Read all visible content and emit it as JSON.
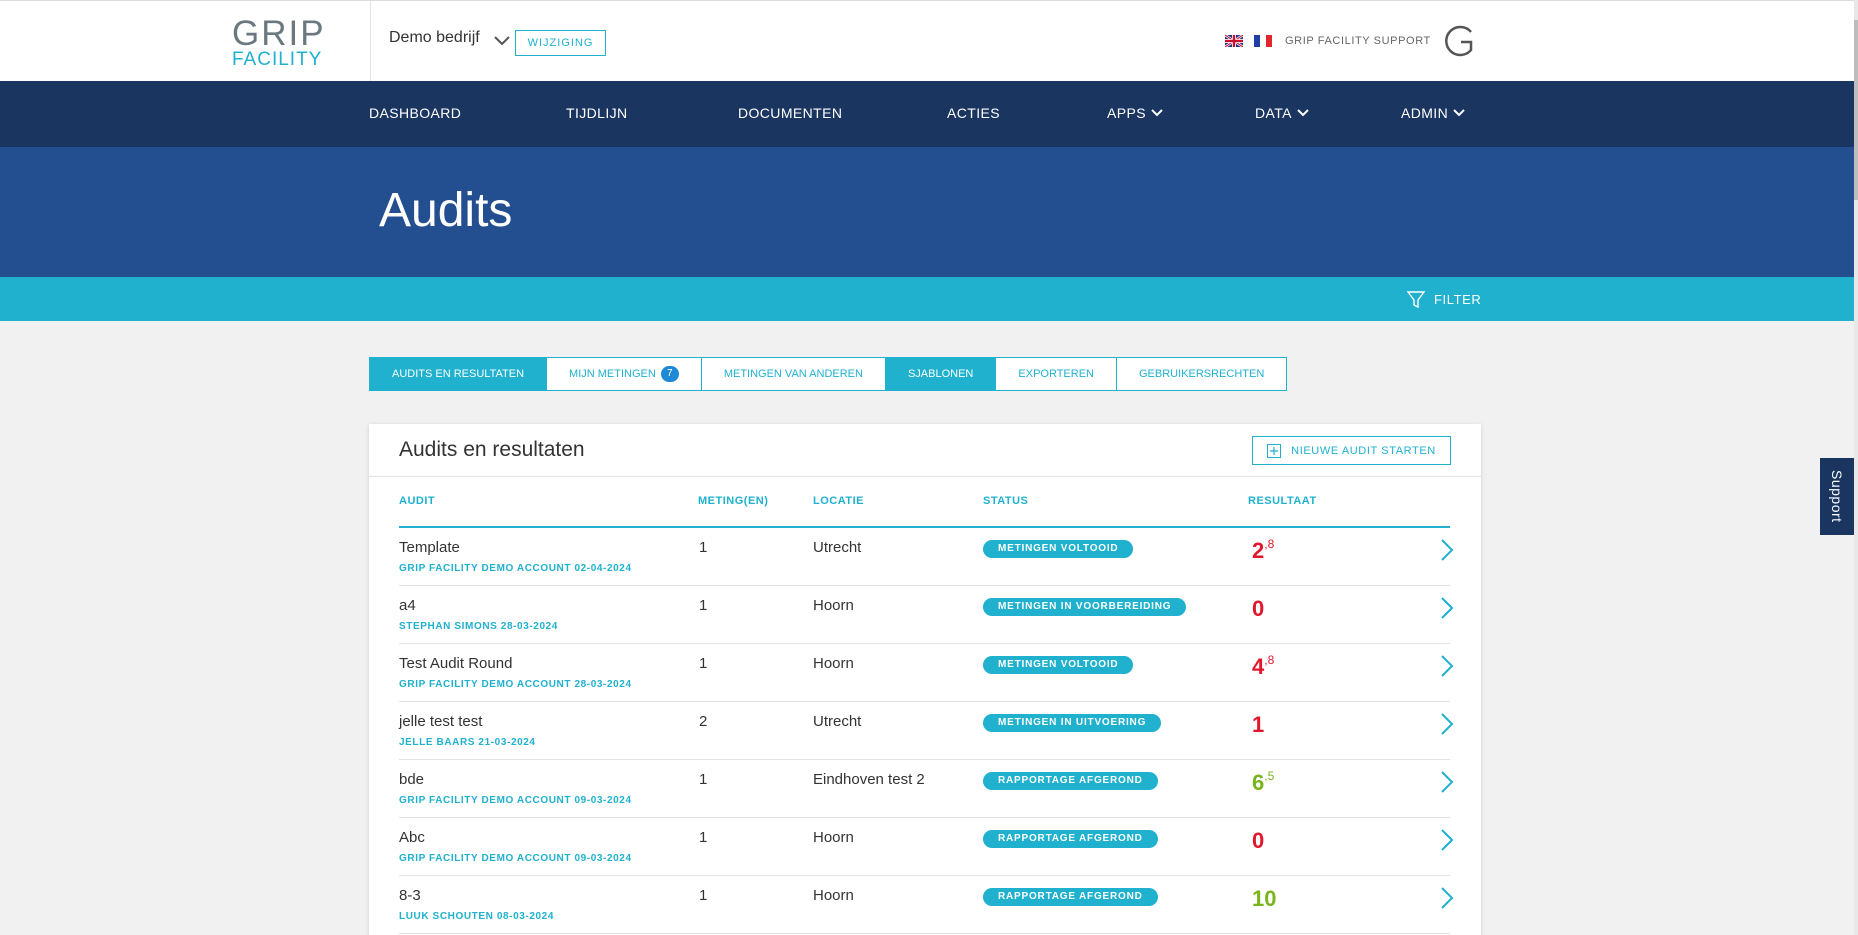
{
  "header": {
    "logo_top": "GRIP",
    "logo_bottom": "FACILITY",
    "company": "Demo bedrijf",
    "change_label": "WIJZIGING",
    "support_label": "GRIP FACILITY SUPPORT"
  },
  "nav": {
    "items": [
      {
        "label": "DASHBOARD",
        "dropdown": false
      },
      {
        "label": "TIJDLIJN",
        "dropdown": false
      },
      {
        "label": "DOCUMENTEN",
        "dropdown": false
      },
      {
        "label": "ACTIES",
        "dropdown": false
      },
      {
        "label": "APPS",
        "dropdown": true
      },
      {
        "label": "DATA",
        "dropdown": true
      },
      {
        "label": "ADMIN",
        "dropdown": true
      }
    ]
  },
  "page": {
    "title": "Audits",
    "filter_label": "FILTER"
  },
  "tabs": [
    {
      "label": "AUDITS EN RESULTATEN",
      "active": true
    },
    {
      "label": "MIJN METINGEN",
      "count": "7",
      "active": false
    },
    {
      "label": "METINGEN VAN ANDEREN",
      "active": false
    },
    {
      "label": "SJABLONEN",
      "active": true
    },
    {
      "label": "EXPORTEREN",
      "active": false
    },
    {
      "label": "GEBRUIKERSRECHTEN",
      "active": false
    }
  ],
  "card": {
    "title": "Audits en resultaten",
    "new_button": "NIEUWE AUDIT STARTEN",
    "columns": {
      "audit": "AUDIT",
      "meting": "METING(EN)",
      "locatie": "LOCATIE",
      "status": "STATUS",
      "resultaat": "RESULTAAT"
    },
    "rows": [
      {
        "name": "Template",
        "sub": "GRIP FACILITY DEMO ACCOUNT 02-04-2024",
        "meting": "1",
        "locatie": "Utrecht",
        "status": "METINGEN VOLTOOID",
        "score_int": "2",
        "score_dec": ",8",
        "score_color": "#e0182d"
      },
      {
        "name": "a4",
        "sub": "STEPHAN SIMONS 28-03-2024",
        "meting": "1",
        "locatie": "Hoorn",
        "status": "METINGEN IN VOORBEREIDING",
        "score_int": "0",
        "score_dec": "",
        "score_color": "#e0182d"
      },
      {
        "name": "Test Audit Round",
        "sub": "GRIP FACILITY DEMO ACCOUNT 28-03-2024",
        "meting": "1",
        "locatie": "Hoorn",
        "status": "METINGEN VOLTOOID",
        "score_int": "4",
        "score_dec": ",8",
        "score_color": "#e0182d"
      },
      {
        "name": "jelle test test",
        "sub": "JELLE BAARS 21-03-2024",
        "meting": "2",
        "locatie": "Utrecht",
        "status": "METINGEN IN UITVOERING",
        "score_int": "1",
        "score_dec": "",
        "score_color": "#e0182d"
      },
      {
        "name": "bde",
        "sub": "GRIP FACILITY DEMO ACCOUNT 09-03-2024",
        "meting": "1",
        "locatie": "Eindhoven test 2",
        "status": "RAPPORTAGE AFGEROND",
        "score_int": "6",
        "score_dec": ",5",
        "score_color": "#7ab41d"
      },
      {
        "name": "Abc",
        "sub": "GRIP FACILITY DEMO ACCOUNT 09-03-2024",
        "meting": "1",
        "locatie": "Hoorn",
        "status": "RAPPORTAGE AFGEROND",
        "score_int": "0",
        "score_dec": "",
        "score_color": "#e0182d"
      },
      {
        "name": "8-3",
        "sub": "LUUK SCHOUTEN 08-03-2024",
        "meting": "1",
        "locatie": "Hoorn",
        "status": "RAPPORTAGE AFGEROND",
        "score_int": "10",
        "score_dec": "",
        "score_color": "#7ab41d"
      }
    ]
  },
  "support_tab": "Support",
  "colors": {
    "nav_bg": "#1b3561",
    "hero_bg": "#234f91",
    "accent": "#1fb1ce",
    "score_red": "#e0182d",
    "score_green": "#7ab41d"
  }
}
